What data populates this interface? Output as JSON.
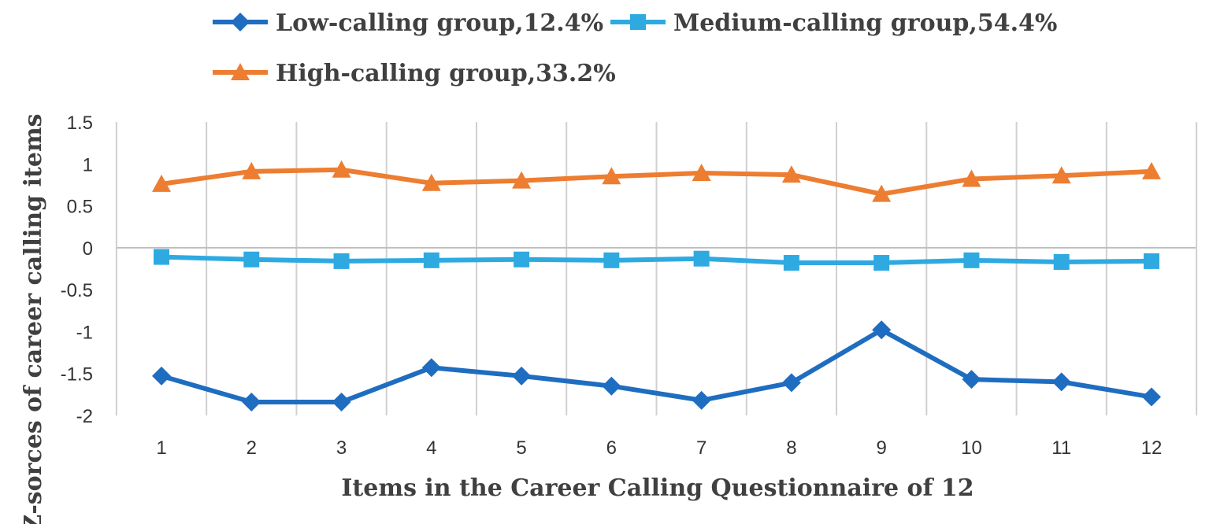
{
  "chart_data": {
    "type": "line",
    "xlabel": "Items in the Career Calling Questionnaire of 12",
    "ylabel": "Z-sorces of career calling items",
    "x": [
      1,
      2,
      3,
      4,
      5,
      6,
      7,
      8,
      9,
      10,
      11,
      12
    ],
    "x_tick_labels": [
      "1",
      "2",
      "3",
      "4",
      "5",
      "6",
      "7",
      "8",
      "9",
      "10",
      "11",
      "12"
    ],
    "ylim": [
      -2,
      1.5
    ],
    "y_ticks": [
      1.5,
      1,
      0.5,
      0,
      -0.5,
      -1,
      -1.5,
      -2
    ],
    "y_tick_labels": [
      "1.5",
      "1",
      "0.5",
      "0",
      "-0.5",
      "-1",
      "-1.5",
      "-2"
    ],
    "grid": "vertical",
    "legend_position": "top",
    "series": [
      {
        "name": "Low-calling group,12.4%",
        "color": "#1f6dc0",
        "marker": "diamond",
        "values": [
          -1.53,
          -1.84,
          -1.84,
          -1.43,
          -1.53,
          -1.65,
          -1.82,
          -1.61,
          -0.98,
          -1.57,
          -1.6,
          -1.78
        ]
      },
      {
        "name": "Medium-calling group,54.4%",
        "color": "#2eaae1",
        "marker": "square",
        "values": [
          -0.11,
          -0.14,
          -0.16,
          -0.15,
          -0.14,
          -0.15,
          -0.13,
          -0.18,
          -0.18,
          -0.15,
          -0.17,
          -0.16
        ]
      },
      {
        "name": "High-calling group,33.2%",
        "color": "#ed7d31",
        "marker": "triangle",
        "values": [
          0.76,
          0.91,
          0.93,
          0.77,
          0.8,
          0.85,
          0.89,
          0.87,
          0.64,
          0.82,
          0.86,
          0.91
        ]
      }
    ]
  }
}
